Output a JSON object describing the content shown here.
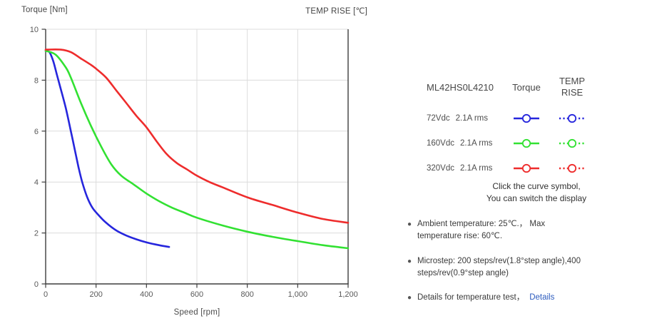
{
  "chart": {
    "y_axis_title": "Torque  [Nm]",
    "secondary_axis_title": "TEMP RISE [℃]",
    "x_axis_title": "Speed [rpm]"
  },
  "chart_data": {
    "type": "line",
    "title": "",
    "xlabel": "Speed [rpm]",
    "ylabel": "Torque [Nm]",
    "y2label": "TEMP RISE [℃]",
    "xlim": [
      0,
      1200
    ],
    "ylim": [
      0,
      10
    ],
    "x_ticks": [
      0,
      200,
      400,
      600,
      800,
      1000,
      1200
    ],
    "x_tick_labels": [
      "0",
      "200",
      "400",
      "600",
      "800",
      "1,000",
      "1,200"
    ],
    "y_ticks": [
      0,
      2,
      4,
      6,
      8,
      10
    ],
    "y_tick_labels": [
      "0",
      "2",
      "4",
      "6",
      "8",
      "10"
    ],
    "grid": true,
    "legend_position": "right",
    "series": [
      {
        "name": "72Vdc 2.1A rms",
        "color": "#2626dd",
        "x": [
          0,
          15,
          30,
          45,
          60,
          80,
          100,
          115,
          130,
          145,
          165,
          185,
          210,
          240,
          280,
          320,
          360,
          400,
          450,
          490
        ],
        "y": [
          9.15,
          9.1,
          8.75,
          8.2,
          7.65,
          6.9,
          6.0,
          5.3,
          4.6,
          4.0,
          3.4,
          3.0,
          2.7,
          2.4,
          2.1,
          1.9,
          1.75,
          1.63,
          1.52,
          1.45
        ]
      },
      {
        "name": "160Vdc 2.1A rms",
        "color": "#32e132",
        "x": [
          0,
          40,
          80,
          100,
          140,
          180,
          220,
          260,
          300,
          350,
          400,
          450,
          500,
          550,
          600,
          700,
          800,
          900,
          1000,
          1100,
          1200
        ],
        "y": [
          9.15,
          9.0,
          8.5,
          8.1,
          7.1,
          6.2,
          5.4,
          4.7,
          4.25,
          3.9,
          3.55,
          3.25,
          3.0,
          2.8,
          2.6,
          2.3,
          2.05,
          1.85,
          1.68,
          1.52,
          1.4
        ]
      },
      {
        "name": "320Vdc 2.1A rms",
        "color": "#ee2c2c",
        "x": [
          0,
          60,
          100,
          140,
          180,
          200,
          240,
          280,
          320,
          360,
          400,
          440,
          480,
          520,
          560,
          600,
          650,
          700,
          800,
          900,
          1000,
          1100,
          1200
        ],
        "y": [
          9.2,
          9.2,
          9.1,
          8.85,
          8.6,
          8.45,
          8.1,
          7.6,
          7.1,
          6.6,
          6.15,
          5.6,
          5.1,
          4.75,
          4.5,
          4.25,
          4.0,
          3.8,
          3.4,
          3.1,
          2.8,
          2.55,
          2.4
        ]
      }
    ]
  },
  "legend": {
    "model": "ML42HS0L4210",
    "col_torque": "Torque",
    "col_temp": "TEMP RISE",
    "rows": [
      {
        "voltage": "72Vdc",
        "current": "2.1A rms",
        "color": "#2626dd"
      },
      {
        "voltage": "160Vdc",
        "current": "2.1A rms",
        "color": "#32e132"
      },
      {
        "voltage": "320Vdc",
        "current": "2.1A rms",
        "color": "#ee2c2c"
      }
    ],
    "hint_line1": "Click the curve symbol,",
    "hint_line2": "You can switch the display"
  },
  "notes": {
    "bullet": "●",
    "items": [
      {
        "text": "Ambient temperature: 25℃.， Max temperature rise: 60℃."
      },
      {
        "text": "Microstep: 200 steps/rev(1.8°step angle),400 steps/rev(0.9°step angle)"
      },
      {
        "text": "Details for temperature test，",
        "link_label": "Details"
      }
    ]
  }
}
